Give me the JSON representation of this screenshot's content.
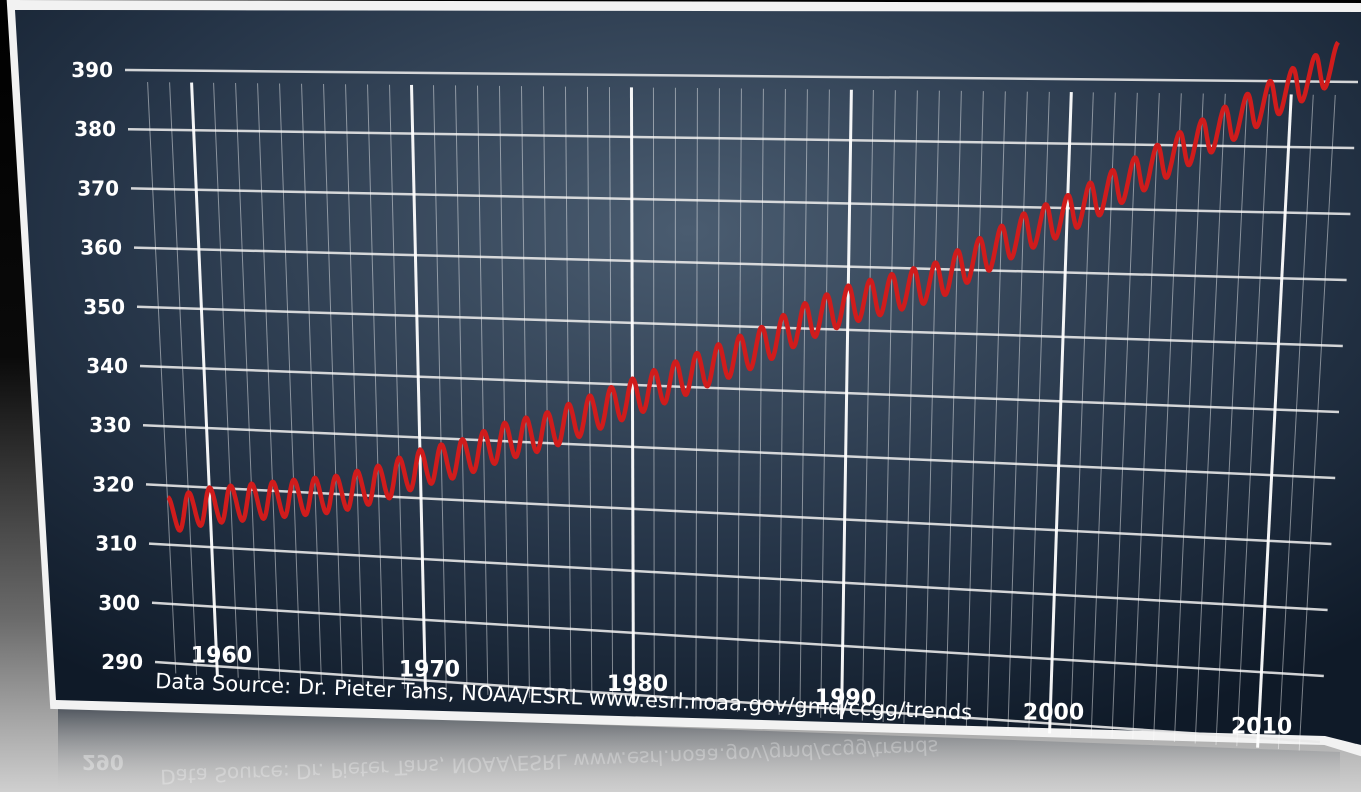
{
  "chart_data": {
    "type": "line",
    "title": "",
    "xlabel": "",
    "ylabel": "",
    "ylim": [
      290,
      390
    ],
    "xlim": [
      1957,
      2013
    ],
    "y_ticks": [
      290,
      300,
      310,
      320,
      330,
      340,
      350,
      360,
      370,
      380,
      390
    ],
    "x_ticks": [
      1960,
      1970,
      1980,
      1990,
      2000,
      2010
    ],
    "grid": true,
    "source_note": "Data Source: Dr. Pieter Tans, NOAA/ESRL www.esrl.noaa.gov/gmd/ccgg/trends",
    "series": [
      {
        "color": "#d01c1c",
        "seasonal_amplitude": 3,
        "x": [
          1958,
          1960,
          1962,
          1964,
          1966,
          1968,
          1970,
          1972,
          1974,
          1976,
          1978,
          1980,
          1982,
          1984,
          1986,
          1988,
          1990,
          1992,
          1994,
          1996,
          1998,
          2000,
          2002,
          2004,
          2006,
          2008,
          2010,
          2012
        ],
        "values": [
          315,
          317,
          318,
          319,
          320,
          322,
          325,
          327,
          330,
          332,
          335,
          338,
          341,
          344,
          347,
          351,
          354,
          356,
          358,
          362,
          366,
          369,
          373,
          377,
          381,
          385,
          389,
          393
        ]
      }
    ]
  }
}
